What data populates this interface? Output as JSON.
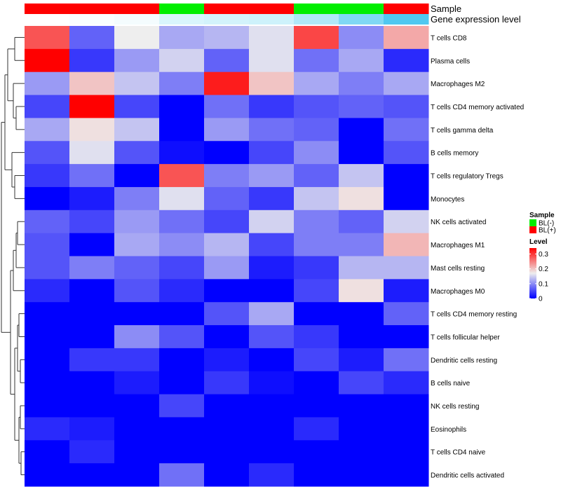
{
  "chart_data": {
    "type": "heatmap",
    "annotation_tracks": [
      {
        "name": "Sample",
        "values": [
          "BL(+)",
          "BL(+)",
          "BL(+)",
          "BL(-)",
          "BL(+)",
          "BL(+)",
          "BL(-)",
          "BL(-)",
          "BL(+)"
        ]
      },
      {
        "name": "Gene expression level",
        "values": [
          0.0,
          0.05,
          0.1,
          0.35,
          0.4,
          0.45,
          0.6,
          0.8,
          1.0
        ]
      }
    ],
    "rows": [
      "T cells CD8",
      "Plasma cells",
      "Macrophages M2",
      "T cells CD4 memory activated",
      "T cells gamma delta",
      "B cells memory",
      "T cells regulatory  Tregs",
      "Monocytes",
      "NK cells activated",
      "Macrophages M1",
      "Mast cells resting",
      "Macrophages M0",
      "T cells CD4 memory resting",
      "T cells follicular helper",
      "Dendritic cells resting",
      "B cells naive",
      "NK cells resting",
      "Eosinophils",
      "T cells CD4 naive",
      "Dendritic cells activated"
    ],
    "values": [
      [
        0.28,
        0.07,
        0.17,
        0.12,
        0.13,
        0.16,
        0.29,
        0.1,
        0.22
      ],
      [
        0.34,
        0.04,
        0.11,
        0.15,
        0.07,
        0.16,
        0.08,
        0.12,
        0.03
      ],
      [
        0.11,
        0.2,
        0.14,
        0.09,
        0.32,
        0.2,
        0.12,
        0.09,
        0.12
      ],
      [
        0.05,
        0.34,
        0.05,
        0.0,
        0.08,
        0.04,
        0.06,
        0.07,
        0.06
      ],
      [
        0.12,
        0.18,
        0.14,
        0.0,
        0.11,
        0.08,
        0.07,
        0.0,
        0.08
      ],
      [
        0.06,
        0.16,
        0.06,
        0.01,
        0.0,
        0.05,
        0.1,
        0.0,
        0.06
      ],
      [
        0.04,
        0.08,
        0.0,
        0.28,
        0.09,
        0.11,
        0.07,
        0.14,
        0.0
      ],
      [
        0.0,
        0.02,
        0.09,
        0.16,
        0.07,
        0.04,
        0.14,
        0.18,
        0.0
      ],
      [
        0.07,
        0.05,
        0.11,
        0.08,
        0.05,
        0.15,
        0.09,
        0.07,
        0.15
      ],
      [
        0.06,
        0.0,
        0.12,
        0.1,
        0.13,
        0.05,
        0.09,
        0.09,
        0.21
      ],
      [
        0.06,
        0.09,
        0.07,
        0.05,
        0.11,
        0.02,
        0.04,
        0.13,
        0.13
      ],
      [
        0.03,
        0.0,
        0.06,
        0.03,
        0.0,
        0.0,
        0.05,
        0.18,
        0.02
      ],
      [
        0.0,
        0.0,
        0.0,
        0.0,
        0.06,
        0.12,
        0.0,
        0.0,
        0.07
      ],
      [
        0.0,
        0.0,
        0.1,
        0.06,
        0.0,
        0.06,
        0.04,
        0.0,
        0.0
      ],
      [
        0.0,
        0.04,
        0.04,
        0.0,
        0.02,
        0.0,
        0.05,
        0.02,
        0.08
      ],
      [
        0.0,
        0.0,
        0.02,
        0.0,
        0.04,
        0.01,
        0.0,
        0.05,
        0.03
      ],
      [
        0.0,
        0.0,
        0.0,
        0.05,
        0.0,
        0.0,
        0.0,
        0.0,
        0.0
      ],
      [
        0.03,
        0.02,
        0.0,
        0.0,
        0.0,
        0.0,
        0.03,
        0.0,
        0.0
      ],
      [
        0.0,
        0.03,
        0.0,
        0.0,
        0.0,
        0.0,
        0.0,
        0.0,
        0.0
      ],
      [
        0.0,
        0.0,
        0.0,
        0.08,
        0.0,
        0.03,
        0.0,
        0.0,
        0.0
      ]
    ],
    "color_scale": {
      "stops": [
        {
          "value": 0.0,
          "color": "#0000ff"
        },
        {
          "value": 0.17,
          "color": "#eeeeee"
        },
        {
          "value": 0.34,
          "color": "#ff0000"
        }
      ]
    },
    "legend": {
      "position": "right",
      "sample_title": "Sample",
      "sample_entries": [
        {
          "label": "BL(-)",
          "color": "#00ee00"
        },
        {
          "label": "BL(+)",
          "color": "#ff0000"
        }
      ],
      "level_title": "Level",
      "level_ticks": [
        {
          "value": 0.3,
          "label": "0.3"
        },
        {
          "value": 0.2,
          "label": "0.2"
        },
        {
          "value": 0.1,
          "label": "0.1"
        },
        {
          "value": 0.0,
          "label": "0"
        }
      ],
      "level_range": [
        0.0,
        0.34
      ]
    },
    "gene_track_colors": [
      "#ffffff",
      "#c8f0fa",
      "#50c8f0"
    ]
  }
}
